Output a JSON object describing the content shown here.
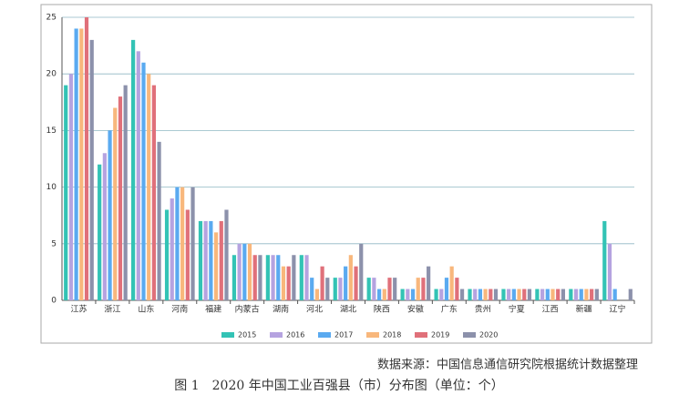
{
  "chart_data": {
    "type": "bar",
    "categories": [
      "江苏",
      "浙江",
      "山东",
      "河南",
      "福建",
      "内蒙古",
      "湖南",
      "河北",
      "湖北",
      "陕西",
      "安徽",
      "广东",
      "贵州",
      "宁夏",
      "江西",
      "新疆",
      "辽宁"
    ],
    "series": [
      {
        "name": "2015",
        "color": "#33c3b5",
        "values": [
          19,
          12,
          23,
          8,
          7,
          4,
          4,
          4,
          2,
          2,
          1,
          1,
          1,
          1,
          1,
          1,
          7
        ]
      },
      {
        "name": "2016",
        "color": "#b5a3e0",
        "values": [
          20,
          13,
          22,
          9,
          7,
          5,
          4,
          4,
          2,
          2,
          1,
          1,
          1,
          1,
          1,
          1,
          5
        ]
      },
      {
        "name": "2017",
        "color": "#5aaaf0",
        "values": [
          24,
          15,
          21,
          10,
          7,
          5,
          4,
          2,
          3,
          1,
          1,
          2,
          1,
          1,
          1,
          1,
          1
        ]
      },
      {
        "name": "2018",
        "color": "#f8b77c",
        "values": [
          24,
          17,
          20,
          10,
          6,
          5,
          3,
          1,
          4,
          1,
          2,
          3,
          1,
          1,
          1,
          1,
          0
        ]
      },
      {
        "name": "2019",
        "color": "#e0707a",
        "values": [
          25,
          18,
          19,
          8,
          7,
          4,
          3,
          3,
          3,
          2,
          2,
          2,
          1,
          1,
          1,
          1,
          0
        ]
      },
      {
        "name": "2020",
        "color": "#8c91ab",
        "values": [
          23,
          19,
          14,
          10,
          8,
          4,
          4,
          2,
          5,
          2,
          3,
          1,
          1,
          1,
          1,
          1,
          1
        ]
      }
    ],
    "ylim": [
      0,
      25
    ],
    "yticks": [
      0,
      5,
      10,
      15,
      20,
      25
    ],
    "grid": true,
    "source": "数据来源：中国信息通信研究院根据统计数据整理",
    "caption": "图 1　2020 年中国工业百强县（市）分布图（单位：个）"
  }
}
